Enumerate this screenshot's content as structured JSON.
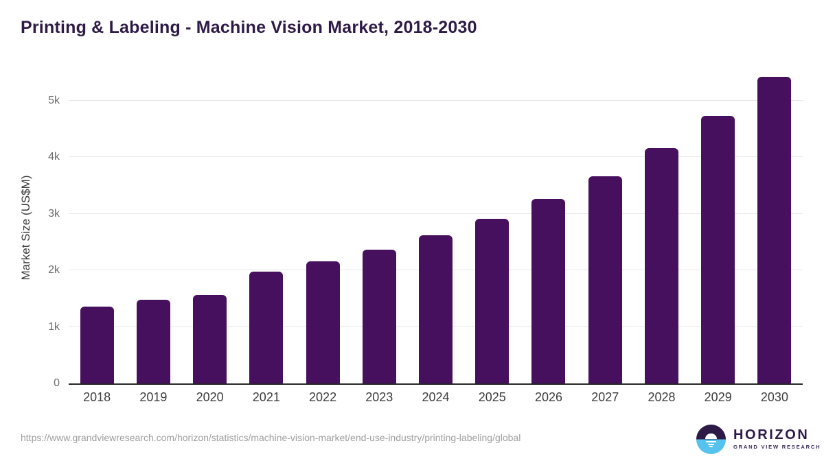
{
  "header": {
    "title": "Printing & Labeling - Machine Vision Market, 2018-2030"
  },
  "chart_data": {
    "type": "bar",
    "title": "Printing & Labeling - Machine Vision Market, 2018-2030",
    "xlabel": "",
    "ylabel": "Market Size (US$M)",
    "categories": [
      "2018",
      "2019",
      "2020",
      "2021",
      "2022",
      "2023",
      "2024",
      "2025",
      "2026",
      "2027",
      "2028",
      "2029",
      "2030"
    ],
    "values": [
      1355,
      1480,
      1570,
      1975,
      2155,
      2360,
      2615,
      2905,
      3260,
      3665,
      4155,
      4735,
      5420
    ],
    "yticks": [
      {
        "label": "0",
        "value": 0
      },
      {
        "label": "1k",
        "value": 1000
      },
      {
        "label": "2k",
        "value": 2000
      },
      {
        "label": "3k",
        "value": 3000
      },
      {
        "label": "4k",
        "value": 4000
      },
      {
        "label": "5k",
        "value": 5000
      }
    ],
    "ylim": [
      0,
      5505
    ],
    "grid": "horizontal",
    "legend": "none"
  },
  "footer": {
    "source_url": "https://www.grandviewresearch.com/horizon/statistics/machine-vision-market/end-use-industry/printing-labeling/global",
    "logo": {
      "name": "HORIZON",
      "subtitle": "GRAND VIEW RESEARCH"
    }
  },
  "colors": {
    "bar": "#47105e",
    "title": "#2e1a47",
    "gridline": "#e7e7e7",
    "axis_line": "#262626",
    "ytick_text": "#6e6e6e",
    "xtick_text": "#3d3d3d",
    "url_text": "#9e9e9e",
    "logo_purple": "#2e1a47",
    "logo_blue": "#56c3ee"
  }
}
